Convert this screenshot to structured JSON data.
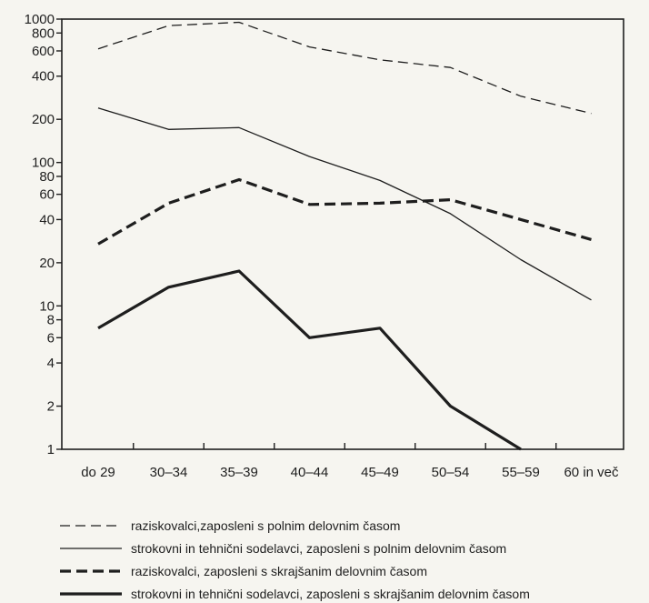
{
  "chart_data": {
    "type": "line",
    "title": "",
    "xlabel": "",
    "ylabel": "",
    "yscale": "log",
    "ylim": [
      1,
      1000
    ],
    "grid": false,
    "legend_position": "bottom",
    "categories": [
      "do 29",
      "30–34",
      "35–39",
      "40–44",
      "45–49",
      "50–54",
      "55–59",
      "60 in več"
    ],
    "y_ticks": [
      1,
      2,
      4,
      6,
      8,
      10,
      20,
      40,
      60,
      80,
      100,
      200,
      400,
      600,
      800,
      1000
    ],
    "series": [
      {
        "name": "raziskovalci,zaposleni s polnim delovnim časom",
        "style": "thin-dashed",
        "values": [
          620,
          900,
          950,
          640,
          520,
          460,
          290,
          220
        ]
      },
      {
        "name": "strokovni in tehnični sodelavci, zaposleni s polnim delovnim časom",
        "style": "thin-solid",
        "values": [
          240,
          170,
          175,
          110,
          75,
          44,
          21,
          11
        ]
      },
      {
        "name": "raziskovalci, zaposleni s skrajšanim delovnim časom",
        "style": "thick-dashed",
        "values": [
          27,
          52,
          76,
          51,
          52,
          55,
          40,
          29
        ]
      },
      {
        "name": "strokovni in tehnični sodelavci, zaposleni s skrajšanim delovnim časom",
        "style": "thick-solid",
        "values": [
          7,
          13.5,
          17.5,
          6,
          7,
          2,
          1,
          null
        ]
      }
    ]
  }
}
